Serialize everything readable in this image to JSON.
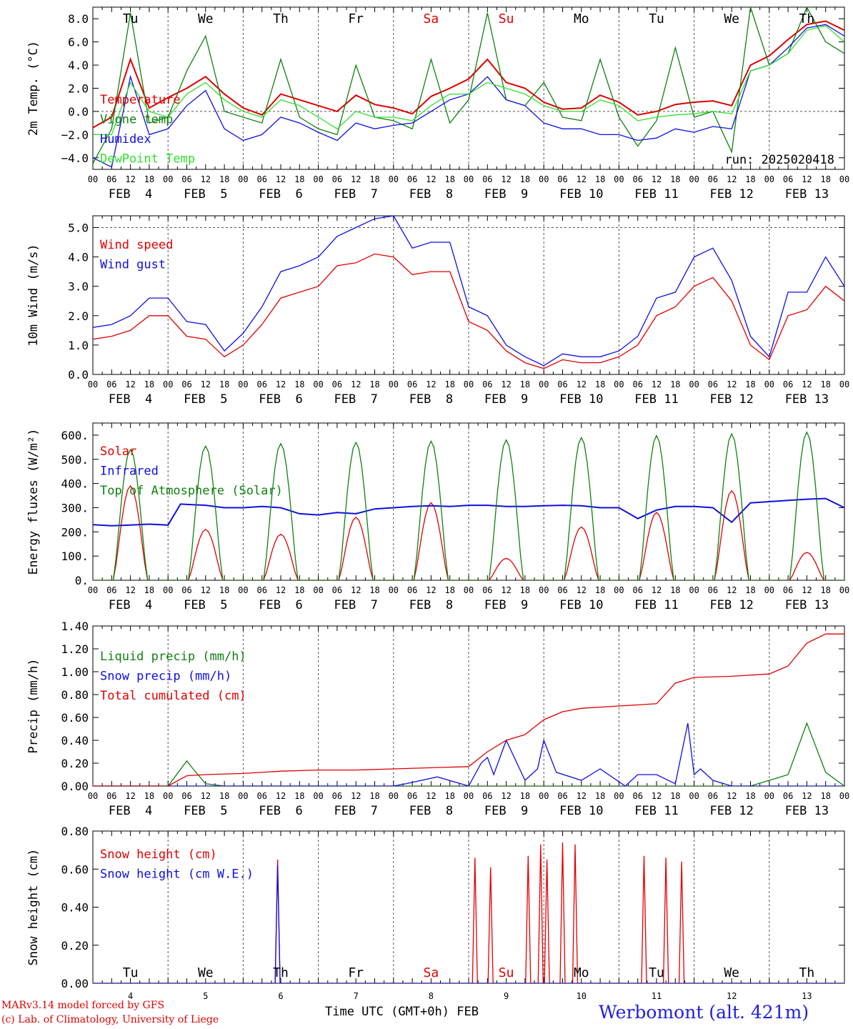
{
  "footer": {
    "model": "MARv3.14 model forced by GFS",
    "credit": "(c) Lab. of Climatology, University of Liege",
    "time_label": "Time UTC (GMT+0h) FEB",
    "station": "Werbomont (alt. 421m)"
  },
  "colors": {
    "red": "#e00000",
    "green": "#108010",
    "blue": "#1010e0",
    "lime": "#30e030"
  },
  "days": [
    "Tu",
    "We",
    "Th",
    "Fr",
    "Sa",
    "Su",
    "Mo",
    "Tu",
    "We",
    "Th"
  ],
  "weekend_days": [
    "Sa",
    "Su"
  ],
  "dates": [
    "FEB  4",
    "FEB  5",
    "FEB  6",
    "FEB  7",
    "FEB  8",
    "FEB  9",
    "FEB 10",
    "FEB 11",
    "FEB 12",
    "FEB 13"
  ],
  "day_numbers": [
    "4",
    "5",
    "6",
    "7",
    "8",
    "9",
    "10",
    "11",
    "12",
    "13"
  ],
  "hour_ticks": [
    "00",
    "06",
    "12",
    "18"
  ],
  "chart_data": [
    {
      "type": "line",
      "ylabel": "2m Temp. (°C)",
      "ylim": [
        -5,
        9
      ],
      "yticks": [
        -4,
        -2,
        0,
        2,
        4,
        6,
        8
      ],
      "ytick_labels": [
        "−4.0",
        "−2.0",
        "0.0",
        "2.0",
        "4.0",
        "6.0",
        "8.0"
      ],
      "reference_lines": [
        0
      ],
      "show_days": true,
      "annotation": "run: 2025020418",
      "x_unit": "hours since FEB 4 00 UTC",
      "series": [
        {
          "name": "Temperature",
          "color": "#e00000",
          "x": [
            0,
            6,
            12,
            18,
            24,
            30,
            36,
            42,
            48,
            54,
            60,
            66,
            72,
            78,
            84,
            90,
            96,
            102,
            108,
            114,
            120,
            126,
            132,
            138,
            144,
            150,
            156,
            162,
            168,
            174,
            180,
            186,
            192,
            198,
            204,
            210,
            216,
            222,
            228,
            234,
            240
          ],
          "values": [
            -1.4,
            -0.5,
            4.5,
            0.3,
            1.2,
            2.0,
            3.0,
            1.5,
            0.3,
            -0.3,
            1.5,
            1.0,
            0.5,
            0.0,
            1.4,
            0.6,
            0.3,
            -0.2,
            1.3,
            2.0,
            2.8,
            4.5,
            2.5,
            2.0,
            0.8,
            0.2,
            0.3,
            1.4,
            0.8,
            -0.3,
            0.0,
            0.6,
            0.8,
            0.9,
            0.5,
            4.0,
            4.8,
            6.2,
            7.5,
            7.8,
            7.0
          ]
        },
        {
          "name": "Vigne temp",
          "color": "#108010",
          "x": [
            0,
            6,
            12,
            18,
            24,
            30,
            36,
            42,
            48,
            54,
            60,
            66,
            72,
            78,
            84,
            90,
            96,
            102,
            108,
            114,
            120,
            126,
            132,
            138,
            144,
            150,
            156,
            162,
            168,
            174,
            180,
            186,
            192,
            198,
            204,
            210,
            216,
            222,
            228,
            234,
            240
          ],
          "values": [
            -4.5,
            -1.5,
            8.5,
            -1.0,
            -0.5,
            3.5,
            6.5,
            0.0,
            -0.5,
            -1.0,
            4.5,
            -0.5,
            -1.5,
            -2.0,
            4.0,
            -0.5,
            -0.8,
            -1.5,
            4.5,
            -1.0,
            1.0,
            8.5,
            1.0,
            0.5,
            2.5,
            -0.5,
            -0.8,
            4.5,
            -0.5,
            -3.0,
            -0.8,
            5.5,
            -0.5,
            0.0,
            -3.5,
            9.0,
            4.0,
            5.0,
            9.0,
            6.0,
            5.0
          ]
        },
        {
          "name": "Humidex",
          "color": "#1010e0",
          "x": [
            0,
            6,
            12,
            18,
            24,
            30,
            36,
            42,
            48,
            54,
            60,
            66,
            72,
            78,
            84,
            90,
            96,
            102,
            108,
            114,
            120,
            126,
            132,
            138,
            144,
            150,
            156,
            162,
            168,
            174,
            180,
            186,
            192,
            198,
            204,
            210,
            216,
            222,
            228,
            234,
            240
          ],
          "values": [
            -4.0,
            -4.8,
            3.0,
            -2.0,
            -1.5,
            0.5,
            1.8,
            -1.5,
            -2.5,
            -2.0,
            -0.5,
            -1.0,
            -1.8,
            -2.5,
            -1.0,
            -1.5,
            -1.2,
            -1.0,
            0.0,
            1.0,
            1.5,
            3.0,
            1.0,
            0.5,
            -1.0,
            -1.5,
            -1.5,
            -2.0,
            -2.0,
            -2.5,
            -2.3,
            -1.5,
            -1.8,
            -1.3,
            -1.5,
            3.5,
            4.0,
            5.5,
            7.2,
            7.5,
            6.5
          ]
        },
        {
          "name": "DewPoint Temp",
          "color": "#30e030",
          "x": [
            0,
            6,
            12,
            18,
            24,
            30,
            36,
            42,
            48,
            54,
            60,
            66,
            72,
            78,
            84,
            90,
            96,
            102,
            108,
            114,
            120,
            126,
            132,
            138,
            144,
            150,
            156,
            162,
            168,
            174,
            180,
            186,
            192,
            198,
            204,
            210,
            216,
            222,
            228,
            234,
            240
          ],
          "values": [
            -2.0,
            -2.0,
            2.5,
            0.0,
            -0.5,
            1.5,
            2.5,
            1.0,
            0.0,
            -0.5,
            1.0,
            0.5,
            -0.5,
            -1.5,
            0.0,
            -0.5,
            -0.5,
            -0.8,
            0.5,
            1.5,
            1.5,
            2.5,
            2.0,
            1.5,
            0.5,
            0.0,
            0.0,
            1.0,
            0.5,
            -0.8,
            -0.5,
            -0.3,
            -0.2,
            0.0,
            -0.2,
            3.5,
            4.0,
            5.0,
            7.0,
            7.4,
            6.0
          ]
        }
      ]
    },
    {
      "type": "line",
      "ylabel": "10m Wind (m/s)",
      "ylim": [
        0,
        5.4
      ],
      "yticks": [
        0,
        1,
        2,
        3,
        4,
        5
      ],
      "ytick_labels": [
        "0.0",
        "1.0",
        "2.0",
        "3.0",
        "4.0",
        "5.0"
      ],
      "reference_lines": [
        5
      ],
      "x_unit": "hours since FEB 4 00 UTC",
      "series": [
        {
          "name": "Wind speed",
          "color": "#e00000",
          "x": [
            0,
            6,
            12,
            18,
            24,
            30,
            36,
            42,
            48,
            54,
            60,
            66,
            72,
            78,
            84,
            90,
            96,
            102,
            108,
            114,
            120,
            126,
            132,
            138,
            144,
            150,
            156,
            162,
            168,
            174,
            180,
            186,
            192,
            198,
            204,
            210,
            216,
            222,
            228,
            234,
            240
          ],
          "values": [
            1.2,
            1.3,
            1.5,
            2.0,
            2.0,
            1.3,
            1.2,
            0.6,
            1.0,
            1.7,
            2.6,
            2.8,
            3.0,
            3.7,
            3.8,
            4.1,
            4.0,
            3.4,
            3.5,
            3.5,
            1.8,
            1.5,
            0.8,
            0.4,
            0.2,
            0.5,
            0.4,
            0.4,
            0.6,
            1.0,
            2.0,
            2.3,
            3.0,
            3.3,
            2.5,
            1.0,
            0.5,
            2.0,
            2.2,
            3.0,
            2.5
          ]
        },
        {
          "name": "Wind gust",
          "color": "#1010e0",
          "x": [
            0,
            6,
            12,
            18,
            24,
            30,
            36,
            42,
            48,
            54,
            60,
            66,
            72,
            78,
            84,
            90,
            96,
            102,
            108,
            114,
            120,
            126,
            132,
            138,
            144,
            150,
            156,
            162,
            168,
            174,
            180,
            186,
            192,
            198,
            204,
            210,
            216,
            222,
            228,
            234,
            240
          ],
          "values": [
            1.6,
            1.7,
            2.0,
            2.6,
            2.6,
            1.8,
            1.7,
            0.8,
            1.4,
            2.3,
            3.5,
            3.7,
            4.0,
            4.7,
            5.0,
            5.3,
            5.4,
            4.3,
            4.5,
            4.5,
            2.3,
            2.0,
            1.0,
            0.6,
            0.3,
            0.7,
            0.6,
            0.6,
            0.8,
            1.3,
            2.6,
            2.8,
            4.0,
            4.3,
            3.2,
            1.3,
            0.6,
            2.8,
            2.8,
            4.0,
            3.0
          ]
        }
      ]
    },
    {
      "type": "line",
      "ylabel": "Energy fluxes (W/m²)",
      "ylim": [
        0,
        650
      ],
      "yticks": [
        0,
        100,
        200,
        300,
        400,
        500,
        600
      ],
      "ytick_labels": [
        "0.",
        "100.",
        "200.",
        "300.",
        "400.",
        "500.",
        "600."
      ],
      "x_unit": "hours since FEB 4 00 UTC",
      "series": [
        {
          "name": "Solar",
          "color": "#e00000",
          "peaks": [
            [
              12,
              390
            ],
            [
              36,
              210
            ],
            [
              60,
              190
            ],
            [
              84,
              260
            ],
            [
              108,
              320
            ],
            [
              132,
              90
            ],
            [
              156,
              220
            ],
            [
              180,
              280
            ],
            [
              204,
              370
            ],
            [
              228,
              115
            ]
          ]
        },
        {
          "name": "Infrared",
          "color": "#1010e0",
          "x": [
            0,
            6,
            12,
            18,
            24,
            28,
            36,
            42,
            48,
            54,
            60,
            66,
            72,
            78,
            84,
            90,
            96,
            102,
            108,
            114,
            120,
            126,
            132,
            138,
            144,
            150,
            156,
            162,
            168,
            174,
            180,
            186,
            192,
            198,
            204,
            210,
            216,
            222,
            228,
            234,
            240
          ],
          "values": [
            230,
            225,
            228,
            232,
            228,
            315,
            310,
            300,
            300,
            305,
            300,
            275,
            270,
            280,
            275,
            295,
            300,
            305,
            308,
            305,
            310,
            310,
            305,
            305,
            308,
            310,
            308,
            300,
            300,
            255,
            290,
            305,
            305,
            300,
            240,
            320,
            325,
            330,
            335,
            338,
            300
          ]
        },
        {
          "name": "Top of Atmosphere (Solar)",
          "color": "#108010",
          "peaks": [
            [
              12,
              540
            ],
            [
              36,
              555
            ],
            [
              60,
              565
            ],
            [
              84,
              570
            ],
            [
              108,
              575
            ],
            [
              132,
              580
            ],
            [
              156,
              590
            ],
            [
              180,
              598
            ],
            [
              204,
              605
            ],
            [
              228,
              612
            ]
          ]
        }
      ]
    },
    {
      "type": "line",
      "ylabel": "Precip (mm/h)",
      "ylim": [
        0,
        1.4
      ],
      "yticks": [
        0,
        0.2,
        0.4,
        0.6,
        0.8,
        1.0,
        1.2,
        1.4
      ],
      "ytick_labels": [
        "0.00",
        "0.20",
        "0.40",
        "0.60",
        "0.80",
        "1.00",
        "1.20",
        "1.40"
      ],
      "x_unit": "hours since FEB 4 00 UTC",
      "series": [
        {
          "name": "Liquid precip (mm/h)",
          "color": "#108010",
          "x": [
            0,
            24,
            30,
            32,
            36,
            42,
            48,
            96,
            120,
            144,
            168,
            192,
            210,
            216,
            222,
            228,
            234,
            240
          ],
          "values": [
            0,
            0,
            0.22,
            0.15,
            0.02,
            0,
            0,
            0,
            0,
            0,
            0,
            0,
            0,
            0.05,
            0.1,
            0.55,
            0.12,
            0.0
          ]
        },
        {
          "name": "Snow precip (mm/h)",
          "color": "#1010e0",
          "x": [
            0,
            96,
            100,
            110,
            120,
            124,
            126,
            128,
            132,
            138,
            142,
            144,
            148,
            156,
            162,
            170,
            174,
            180,
            186,
            190,
            192,
            194,
            198,
            204,
            240
          ],
          "values": [
            0,
            0,
            0.02,
            0.08,
            0,
            0.2,
            0.25,
            0.1,
            0.4,
            0.05,
            0.15,
            0.4,
            0.12,
            0.05,
            0.15,
            0,
            0.1,
            0.1,
            0.02,
            0.55,
            0.1,
            0.15,
            0.05,
            0,
            0
          ]
        },
        {
          "name": "Total cumulated (cm)",
          "color": "#e00000",
          "x": [
            0,
            24,
            30,
            36,
            48,
            60,
            72,
            84,
            96,
            120,
            126,
            132,
            138,
            144,
            150,
            156,
            168,
            180,
            186,
            192,
            204,
            216,
            222,
            228,
            234,
            240
          ],
          "values": [
            0,
            0,
            0.09,
            0.1,
            0.11,
            0.13,
            0.14,
            0.14,
            0.15,
            0.17,
            0.3,
            0.4,
            0.45,
            0.58,
            0.65,
            0.68,
            0.7,
            0.72,
            0.9,
            0.95,
            0.96,
            0.98,
            1.05,
            1.25,
            1.33,
            1.33
          ]
        }
      ]
    },
    {
      "type": "line",
      "ylabel": "Snow height (cm)",
      "ylim": [
        0,
        0.8
      ],
      "yticks": [
        0,
        0.2,
        0.4,
        0.6,
        0.8
      ],
      "ytick_labels": [
        "0.00",
        "0.20",
        "0.40",
        "0.60",
        "0.80"
      ],
      "show_days_bottom": true,
      "x_unit": "hours since FEB 4 00 UTC",
      "series": [
        {
          "name": "Snow height (cm)",
          "color": "#e00000",
          "spikes": [
            [
              59,
              0.65
            ],
            [
              122,
              0.66
            ],
            [
              127,
              0.61
            ],
            [
              139,
              0.67
            ],
            [
              143,
              0.73
            ],
            [
              145,
              0.65
            ],
            [
              150,
              0.74
            ],
            [
              154,
              0.73
            ],
            [
              176,
              0.67
            ],
            [
              183,
              0.66
            ],
            [
              188,
              0.64
            ]
          ]
        },
        {
          "name": "Snow height (cm W.E.)",
          "color": "#1010e0",
          "spikes": [
            [
              59,
              0.62
            ]
          ]
        }
      ]
    }
  ]
}
